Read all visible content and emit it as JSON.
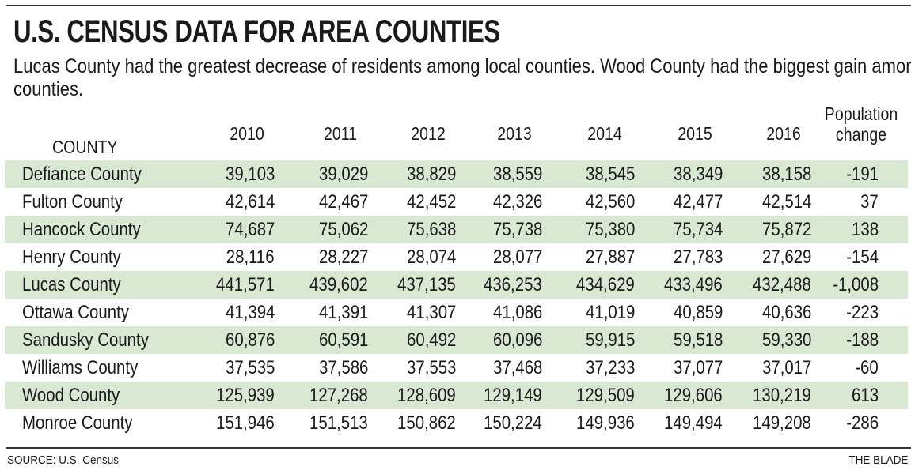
{
  "title": "U.S. CENSUS DATA FOR AREA COUNTIES",
  "subtitle": "Lucas County had the greatest decrease of residents among local counties. Wood County had the biggest gain among the counties.",
  "table": {
    "headers": [
      "COUNTY",
      "2010",
      "2011",
      "2012",
      "2013",
      "2014",
      "2015",
      "2016",
      "Population change"
    ],
    "rows": [
      [
        "Defiance County",
        "39,103",
        "39,029",
        "38,829",
        "38,559",
        "38,545",
        "38,349",
        "38,158",
        "-191"
      ],
      [
        "Fulton County",
        "42,614",
        "42,467",
        "42,452",
        "42,326",
        "42,560",
        "42,477",
        "42,514",
        "37"
      ],
      [
        "Hancock County",
        "74,687",
        "75,062",
        "75,638",
        "75,738",
        "75,380",
        "75,734",
        "75,872",
        "138"
      ],
      [
        "Henry County",
        "28,116",
        "28,227",
        "28,074",
        "28,077",
        "27,887",
        "27,783",
        "27,629",
        "-154"
      ],
      [
        "Lucas County",
        "441,571",
        "439,602",
        "437,135",
        "436,253",
        "434,629",
        "433,496",
        "432,488",
        "-1,008"
      ],
      [
        "Ottawa County",
        "41,394",
        "41,391",
        "41,307",
        "41,086",
        "41,019",
        "40,859",
        "40,636",
        "-223"
      ],
      [
        "Sandusky County",
        "60,876",
        "60,591",
        "60,492",
        "60,096",
        "59,915",
        "59,518",
        "59,330",
        "-188"
      ],
      [
        "Williams County",
        "37,535",
        "37,586",
        "37,553",
        "37,468",
        "37,233",
        "37,077",
        "37,017",
        "-60"
      ],
      [
        "Wood County",
        "125,939",
        "127,268",
        "128,609",
        "129,149",
        "129,509",
        "129,606",
        "130,219",
        "613"
      ],
      [
        "Monroe County",
        "151,946",
        "151,513",
        "150,862",
        "150,224",
        "149,936",
        "149,494",
        "149,208",
        "-286"
      ]
    ]
  },
  "footer": {
    "source": "SOURCE: U.S. Census",
    "credit": "THE BLADE"
  },
  "colors": {
    "row_shade": "#d9e8d3",
    "text": "#1a1a1a"
  }
}
